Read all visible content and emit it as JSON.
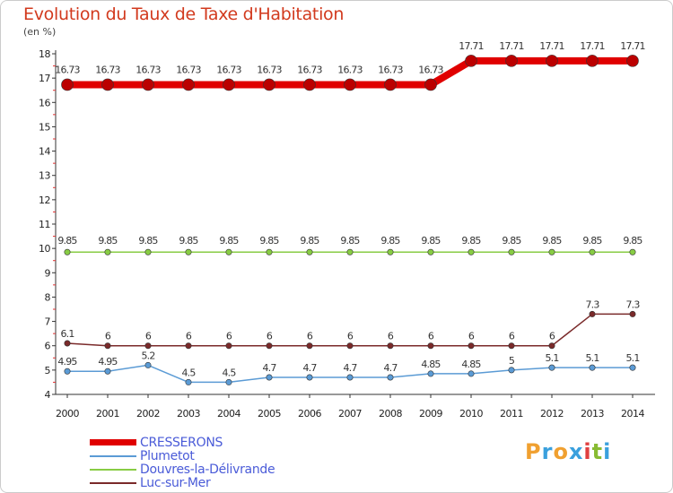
{
  "chart_data": {
    "type": "line",
    "title": "Evolution du Taux de Taxe d'Habitation",
    "ylabel": "(en %)",
    "xlabel": "",
    "ylim": [
      4,
      18
    ],
    "yticks": [
      4,
      5,
      6,
      7,
      8,
      9,
      10,
      11,
      12,
      13,
      14,
      15,
      16,
      17,
      18
    ],
    "x": [
      "2000",
      "2001",
      "2002",
      "2003",
      "2004",
      "2005",
      "2006",
      "2007",
      "2008",
      "2009",
      "2010",
      "2011",
      "2012",
      "2013",
      "2014"
    ],
    "series": [
      {
        "name": "CRESSERONS",
        "color": "#e00000",
        "values": [
          16.73,
          16.73,
          16.73,
          16.73,
          16.73,
          16.73,
          16.73,
          16.73,
          16.73,
          16.73,
          17.71,
          17.71,
          17.71,
          17.71,
          17.71
        ],
        "labels": [
          "16.73",
          "16.73",
          "16.73",
          "16.73",
          "16.73",
          "16.73",
          "16.73",
          "16.73",
          "16.73",
          "16.73",
          "17.71",
          "17.71",
          "17.71",
          "17.71",
          "17.71"
        ]
      },
      {
        "name": "Plumetot",
        "color": "#5b9bd5",
        "values": [
          4.95,
          4.95,
          5.2,
          4.5,
          4.5,
          4.7,
          4.7,
          4.7,
          4.7,
          4.85,
          4.85,
          5,
          5.1,
          5.1,
          5.1
        ],
        "labels": [
          "4.95",
          "4.95",
          "5.2",
          "4.5",
          "4.5",
          "4.7",
          "4.7",
          "4.7",
          "4.7",
          "4.85",
          "4.85",
          "5",
          "5.1",
          "5.1",
          "5.1"
        ]
      },
      {
        "name": "Douvres-la-Délivrande",
        "color": "#88cc44",
        "values": [
          9.85,
          9.85,
          9.85,
          9.85,
          9.85,
          9.85,
          9.85,
          9.85,
          9.85,
          9.85,
          9.85,
          9.85,
          9.85,
          9.85,
          9.85
        ],
        "labels": [
          "9.85",
          "9.85",
          "9.85",
          "9.85",
          "9.85",
          "9.85",
          "9.85",
          "9.85",
          "9.85",
          "9.85",
          "9.85",
          "9.85",
          "9.85",
          "9.85",
          "9.85"
        ]
      },
      {
        "name": "Luc-sur-Mer",
        "color": "#7a2a2a",
        "values": [
          6.1,
          6,
          6,
          6,
          6,
          6,
          6,
          6,
          6,
          6,
          6,
          6,
          6,
          7.3,
          7.3
        ],
        "labels": [
          "6.1",
          "6",
          "6",
          "6",
          "6",
          "6",
          "6",
          "6",
          "6",
          "6",
          "6",
          "6",
          "6",
          "7.3",
          "7.3"
        ]
      }
    ]
  },
  "legend": {
    "items": [
      {
        "label": "CRESSERONS",
        "color": "#e00000"
      },
      {
        "label": "Plumetot",
        "color": "#5b9bd5"
      },
      {
        "label": "Douvres-la-Délivrande",
        "color": "#88cc44"
      },
      {
        "label": "Luc-sur-Mer",
        "color": "#7a2a2a"
      }
    ]
  },
  "logo": {
    "text": "Proxiti",
    "letters": [
      {
        "ch": "P",
        "color": "#f0a030"
      },
      {
        "ch": "r",
        "color": "#3aa0dd"
      },
      {
        "ch": "o",
        "color": "#f0a030"
      },
      {
        "ch": "x",
        "color": "#3aa0dd"
      },
      {
        "ch": "i",
        "color": "#e04040"
      },
      {
        "ch": "t",
        "color": "#88bb33"
      },
      {
        "ch": "i",
        "color": "#3aa0dd"
      }
    ]
  }
}
